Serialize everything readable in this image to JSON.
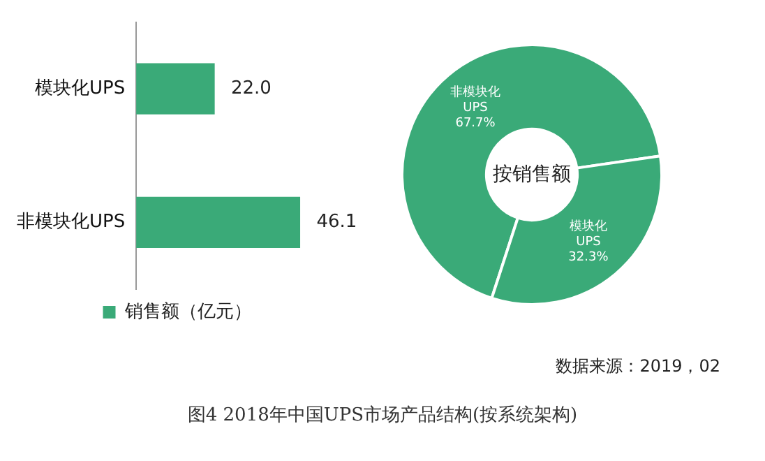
{
  "chart_data": [
    {
      "type": "bar",
      "orientation": "horizontal",
      "categories": [
        "模块化UPS",
        "非模块化UPS"
      ],
      "series": [
        {
          "name": "销售额（亿元）",
          "color": "#3aaa78",
          "values": [
            22.0,
            46.1
          ],
          "value_labels": [
            "22.0",
            "46.1"
          ]
        }
      ],
      "legend": "bottom",
      "annotations": [
        "图4  2018年中国UPS市场产品结构(按系统架构)"
      ]
    },
    {
      "type": "donut",
      "title": "按销售额",
      "categories": [
        "非模块化UPS",
        "模块化UPS"
      ],
      "values": [
        67.7,
        32.3
      ],
      "colors": [
        "#3aaa78",
        "#3aaa78"
      ],
      "value_labels": [
        "67.7%",
        "32.3%"
      ],
      "annotations": [
        "数据来源：2019，02"
      ]
    }
  ]
}
